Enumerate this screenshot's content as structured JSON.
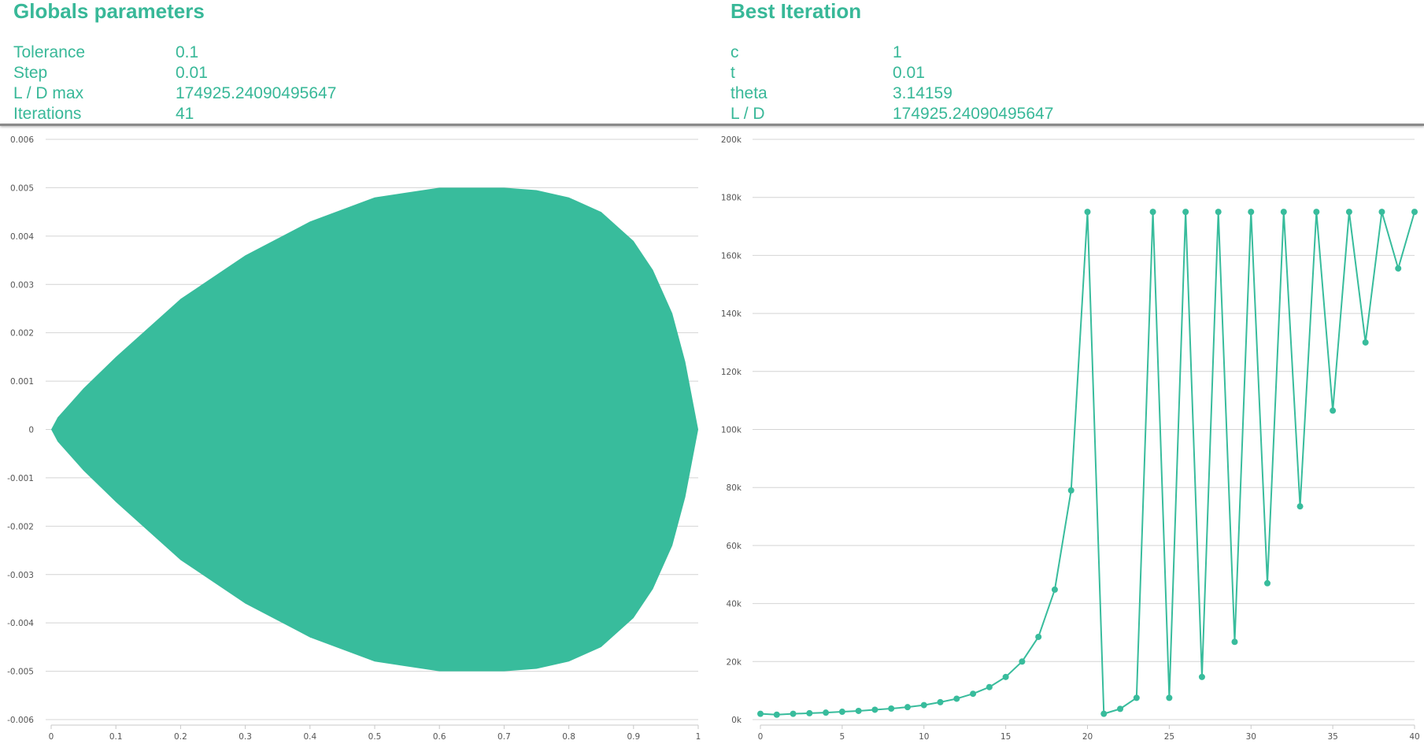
{
  "globals": {
    "title": "Globals parameters",
    "params": [
      {
        "label": "Tolerance",
        "value": "0.1"
      },
      {
        "label": "Step",
        "value": "0.01"
      },
      {
        "label": "L / D max",
        "value": "174925.24090495647"
      },
      {
        "label": "Iterations",
        "value": "41"
      }
    ]
  },
  "best": {
    "title": "Best Iteration",
    "params": [
      {
        "label": "c",
        "value": "1"
      },
      {
        "label": "t",
        "value": "0.01"
      },
      {
        "label": "theta",
        "value": "3.14159"
      },
      {
        "label": "L / D",
        "value": "174925.24090495647"
      }
    ]
  },
  "colors": {
    "accent": "#38bc9c",
    "grid": "#d4d4d4",
    "tick_text": "#555555"
  },
  "chart_data": [
    {
      "type": "area",
      "title": "",
      "xlabel": "",
      "ylabel": "",
      "xlim": [
        0,
        1
      ],
      "ylim": [
        -0.006,
        0.006
      ],
      "grid": true,
      "x_ticks": [
        "0",
        "0.1",
        "0.2",
        "0.3",
        "0.4",
        "0.5",
        "0.6",
        "0.7",
        "0.8",
        "0.9",
        "1"
      ],
      "y_ticks": [
        "0.006",
        "0.005",
        "0.004",
        "0.003",
        "0.002",
        "0.001",
        "0",
        "-0.001",
        "-0.002",
        "-0.003",
        "-0.004",
        "-0.005",
        "-0.006"
      ],
      "series": [
        {
          "upper": {
            "x": [
              0,
              0.01,
              0.05,
              0.1,
              0.2,
              0.3,
              0.4,
              0.5,
              0.6,
              0.7,
              0.75,
              0.8,
              0.85,
              0.9,
              0.93,
              0.96,
              0.98,
              1.0
            ],
            "y": [
              0,
              0.00025,
              0.00085,
              0.0015,
              0.0027,
              0.0036,
              0.0043,
              0.0048,
              0.005,
              0.005,
              0.00495,
              0.0048,
              0.0045,
              0.0039,
              0.0033,
              0.0024,
              0.0014,
              0
            ]
          },
          "lower": {
            "x": [
              0,
              0.01,
              0.05,
              0.1,
              0.2,
              0.3,
              0.4,
              0.5,
              0.6,
              0.7,
              0.75,
              0.8,
              0.85,
              0.9,
              0.93,
              0.96,
              0.98,
              1.0
            ],
            "y": [
              0,
              -0.00025,
              -0.00085,
              -0.0015,
              -0.0027,
              -0.0036,
              -0.0043,
              -0.0048,
              -0.005,
              -0.005,
              -0.00495,
              -0.0048,
              -0.0045,
              -0.0039,
              -0.0033,
              -0.0024,
              -0.0014,
              0
            ]
          }
        }
      ]
    },
    {
      "type": "line",
      "title": "",
      "xlabel": "",
      "ylabel": "",
      "xlim": [
        0,
        40
      ],
      "ylim": [
        0,
        200000
      ],
      "grid": true,
      "x_ticks": [
        "0",
        "5",
        "10",
        "15",
        "20",
        "25",
        "30",
        "35",
        "40"
      ],
      "y_ticks": [
        "200k",
        "180k",
        "160k",
        "140k",
        "120k",
        "100k",
        "80k",
        "60k",
        "40k",
        "20k",
        "0k"
      ],
      "series": [
        {
          "x": [
            0,
            1,
            2,
            3,
            4,
            5,
            6,
            7,
            8,
            9,
            10,
            11,
            12,
            13,
            14,
            15,
            16,
            17,
            18,
            19,
            20,
            21,
            22,
            23,
            24,
            25,
            26,
            27,
            28,
            29,
            30,
            31,
            32,
            33,
            34,
            35,
            36,
            37,
            38,
            39,
            40
          ],
          "values": [
            2000,
            1700,
            2000,
            2200,
            2400,
            2700,
            3000,
            3400,
            3800,
            4300,
            5000,
            6000,
            7200,
            8900,
            11200,
            14700,
            20000,
            28500,
            44800,
            79000,
            175000,
            2000,
            3700,
            7500,
            175000,
            7500,
            175000,
            14700,
            175000,
            26800,
            175000,
            47000,
            175000,
            73500,
            175000,
            106500,
            175000,
            130000,
            175000,
            155500,
            175000
          ]
        }
      ]
    }
  ]
}
